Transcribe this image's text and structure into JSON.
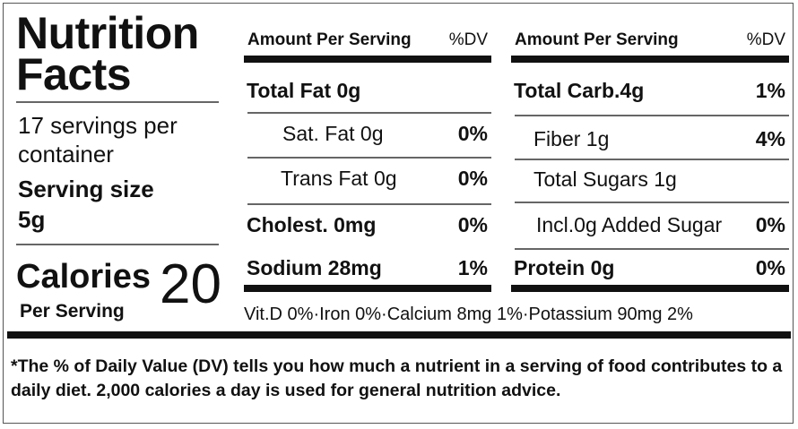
{
  "title": "Nutrition Facts",
  "servings": "17 servings per container",
  "serving_size_label": "Serving size",
  "serving_size": "5g",
  "calories_label": "Calories",
  "calories_sub": "Per Serving",
  "calories": 20,
  "left_table": {
    "header": {
      "amount": "Amount Per Serving",
      "dv": "%DV"
    },
    "rows": [
      {
        "label": "Total Fat 0g"
      },
      {
        "label": "Sat. Fat 0g",
        "dv": "0%"
      },
      {
        "label": "Trans Fat 0g",
        "dv": "0%"
      },
      {
        "label": "Cholest. 0mg",
        "dv": "0%"
      },
      {
        "label": "Sodium 28mg",
        "dv": "1%"
      }
    ]
  },
  "right_table": {
    "header": {
      "amount": "Amount Per Serving",
      "dv": "%DV"
    },
    "rows": [
      {
        "label": "Total Carb.4g",
        "dv": "1%"
      },
      {
        "label": "Fiber 1g",
        "dv": "4%"
      },
      {
        "label": "Total Sugars 1g"
      },
      {
        "label": "Incl.0g Added Sugar",
        "dv": "0%"
      },
      {
        "label": "Protein 0g",
        "dv": "0%"
      }
    ]
  },
  "vitamins": "Vit.D 0%·Iron 0%·Calcium 8mg 1%·Potassium 90mg 2%",
  "footnote": "*The % of Daily Value (DV) tells you how much a nutrient in a serving of food contributes to a daily diet. 2,000 calories a day is used for general nutrition advice."
}
